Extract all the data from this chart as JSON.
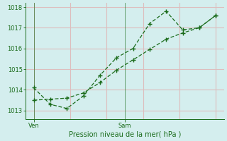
{
  "line1_x": [
    0,
    1,
    2,
    3,
    4,
    5,
    6,
    7,
    8,
    9,
    10,
    11
  ],
  "line1_y": [
    1014.1,
    1013.3,
    1013.1,
    1013.7,
    1014.7,
    1015.55,
    1016.0,
    1017.2,
    1017.8,
    1016.9,
    1017.0,
    1017.6
  ],
  "line2_x": [
    0,
    1,
    2,
    3,
    4,
    5,
    6,
    7,
    8,
    9,
    10,
    11
  ],
  "line2_y": [
    1013.5,
    1013.55,
    1013.6,
    1013.85,
    1014.35,
    1014.95,
    1015.45,
    1015.95,
    1016.45,
    1016.75,
    1017.0,
    1017.6
  ],
  "line_color": "#1a6b1a",
  "bg_color": "#d4eeee",
  "grid_color": "#ddbdbd",
  "ylabel_ticks": [
    1013,
    1014,
    1015,
    1016,
    1017,
    1018
  ],
  "ven_x": 0,
  "sam_x": 5.5,
  "xlabel": "Pression niveau de la mer( hPa )",
  "ylim": [
    1012.6,
    1018.2
  ],
  "xlim": [
    -0.5,
    11.5
  ]
}
